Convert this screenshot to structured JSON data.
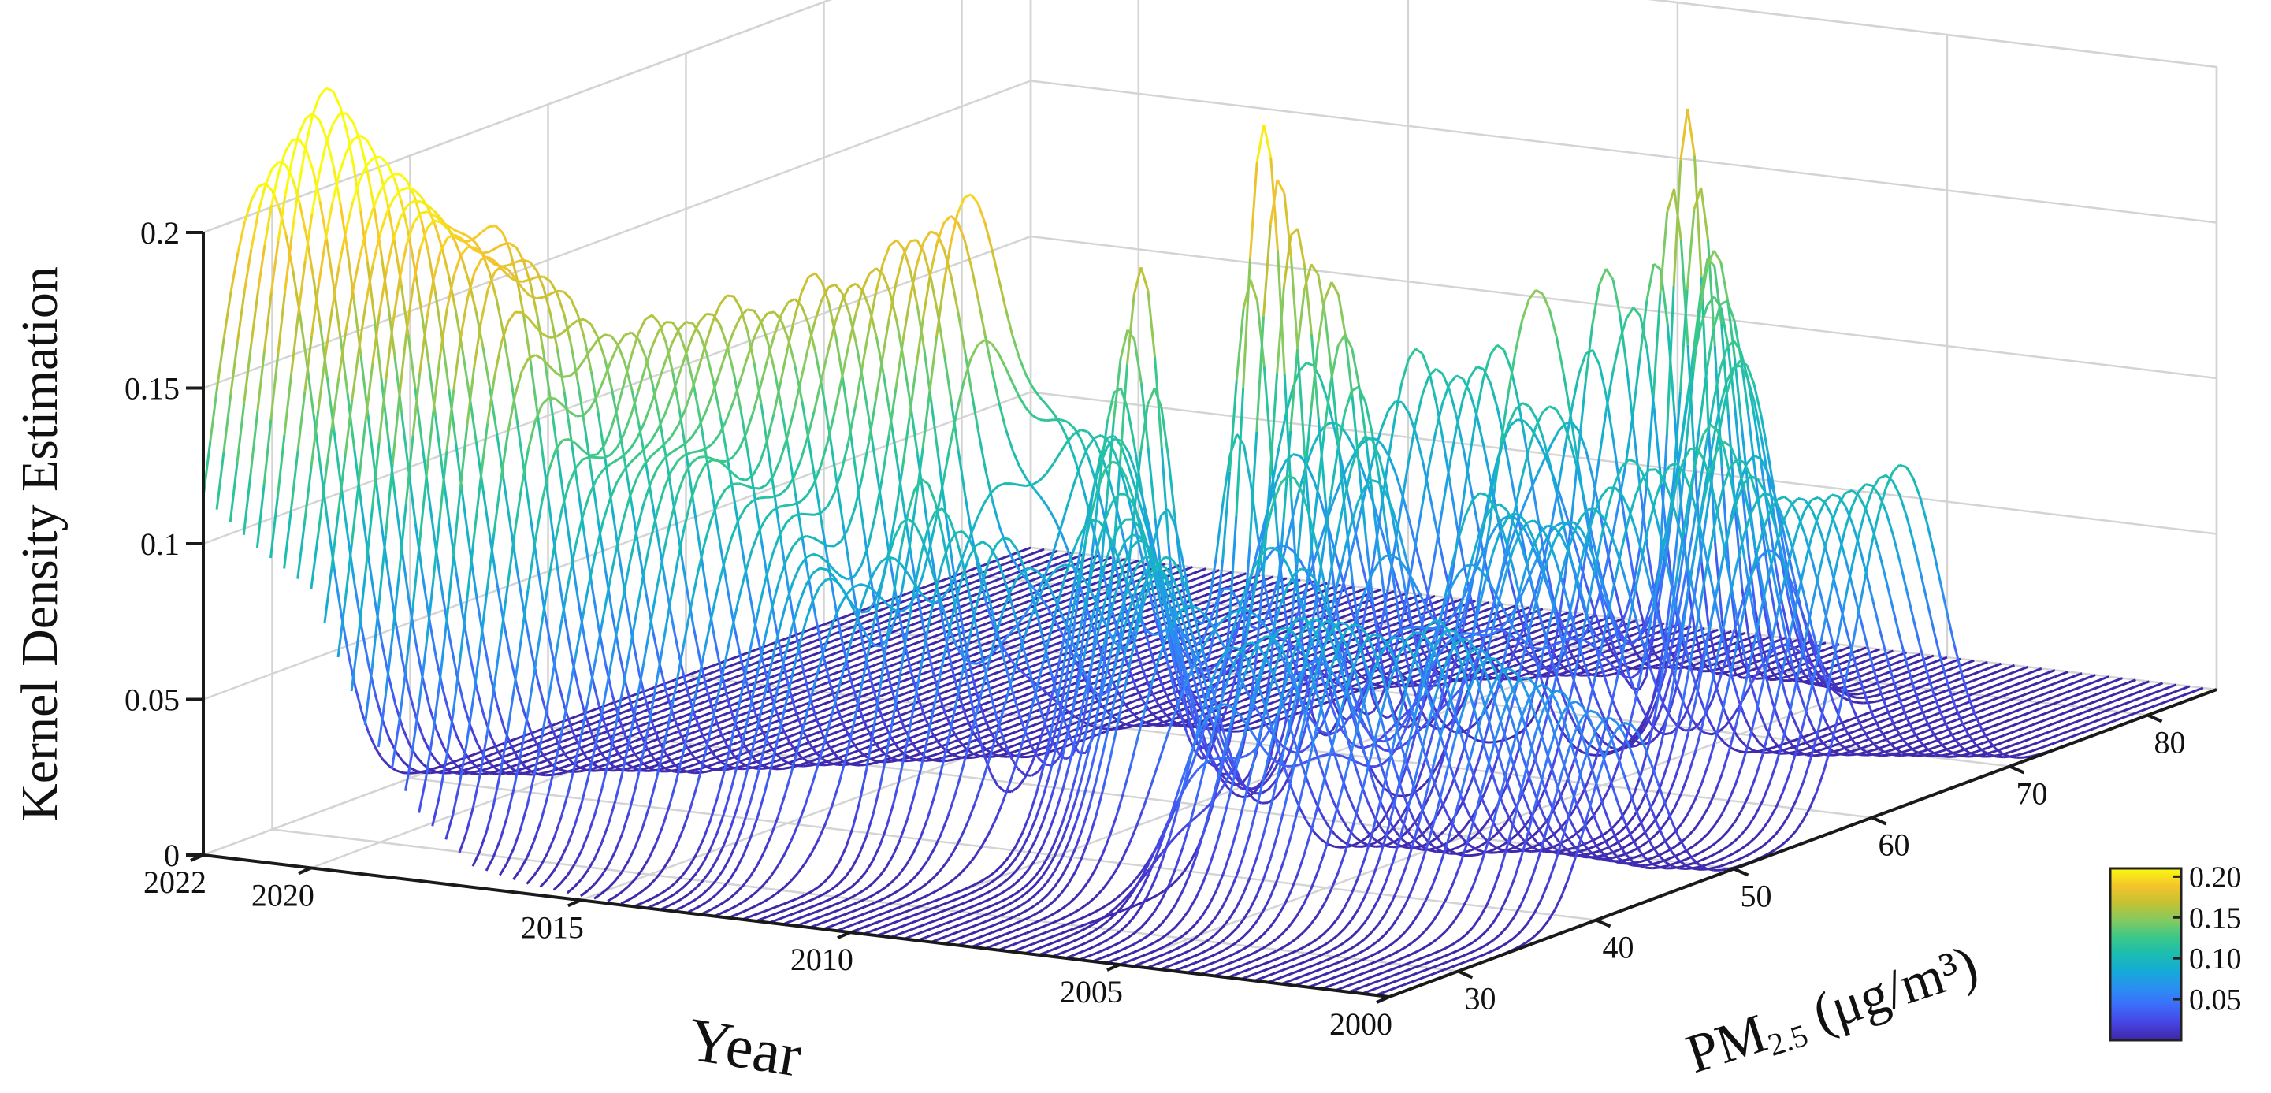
{
  "chart_data": {
    "type": "waterfall-3d",
    "title": "",
    "zlabel": "Kernel Density Estimation",
    "ylabel": "Year",
    "xlabel_main": "PM",
    "xlabel_sub": "2.5",
    "xlabel_units": "(μg/m³)",
    "x_range": [
      25,
      85
    ],
    "year_range": [
      2000,
      2022
    ],
    "z_range": [
      0,
      0.2
    ],
    "x_ticks": [
      "30",
      "40",
      "50",
      "60",
      "70",
      "80"
    ],
    "year_ticks": [
      "2022",
      "2020",
      "2015",
      "2010",
      "2005",
      "2000"
    ],
    "z_ticks": [
      "0",
      "0.05",
      "0.1",
      "0.15",
      "0.2"
    ],
    "colorbar_ticks": [
      "0.20",
      "0.15",
      "0.10",
      "0.05"
    ],
    "colorbar_range": [
      0,
      0.21
    ],
    "colormap": [
      "#3e26a8",
      "#4744e1",
      "#3d6bfa",
      "#2a8ff2",
      "#16aad6",
      "#1bbdb1",
      "#3bc888",
      "#85ca5f",
      "#c4c133",
      "#f5c42c",
      "#f9fb0e"
    ],
    "peaks_by_year": [
      {
        "year": 2000,
        "peaks": [
          [
            42,
            0.06,
            2.5
          ],
          [
            62,
            0.11,
            3.0
          ]
        ]
      },
      {
        "year": 2001,
        "peaks": [
          [
            41,
            0.07,
            2.5
          ],
          [
            61,
            0.1,
            3.0
          ]
        ]
      },
      {
        "year": 2002,
        "peaks": [
          [
            40,
            0.08,
            3.0
          ],
          [
            60,
            0.1,
            3.0
          ]
        ]
      },
      {
        "year": 2003,
        "peaks": [
          [
            40,
            0.09,
            3.0
          ],
          [
            60,
            0.12,
            2.5
          ]
        ]
      },
      {
        "year": 2004,
        "peaks": [
          [
            38,
            0.09,
            3.0
          ],
          [
            58,
            0.11,
            3.0
          ]
        ]
      },
      {
        "year": 2005,
        "peaks": [
          [
            38,
            0.09,
            3.0
          ],
          [
            56,
            0.09,
            3.0
          ],
          [
            70,
            0.12,
            2.5
          ]
        ]
      },
      {
        "year": 2006,
        "peaks": [
          [
            37,
            0.08,
            3.0
          ],
          [
            55,
            0.1,
            3.0
          ],
          [
            72,
            0.15,
            2.0
          ]
        ]
      },
      {
        "year": 2007,
        "peaks": [
          [
            45,
            0.12,
            3.0
          ],
          [
            63,
            0.15,
            3.0
          ],
          [
            74,
            0.19,
            1.2
          ]
        ]
      },
      {
        "year": 2008,
        "peaks": [
          [
            40,
            0.1,
            3.0
          ],
          [
            55,
            0.1,
            3.0
          ],
          [
            72,
            0.14,
            2.0
          ]
        ]
      },
      {
        "year": 2009,
        "peaks": [
          [
            42,
            0.1,
            3.0
          ],
          [
            56,
            0.16,
            2.0
          ],
          [
            68,
            0.12,
            2.5
          ]
        ]
      },
      {
        "year": 2010,
        "peaks": [
          [
            44,
            0.12,
            3.0
          ],
          [
            55,
            0.21,
            1.5
          ],
          [
            66,
            0.12,
            2.5
          ]
        ]
      },
      {
        "year": 2011,
        "peaks": [
          [
            40,
            0.1,
            3.0
          ],
          [
            50,
            0.17,
            1.6
          ],
          [
            62,
            0.12,
            3.0
          ]
        ]
      },
      {
        "year": 2012,
        "peaks": [
          [
            38,
            0.12,
            2.5
          ],
          [
            52,
            0.11,
            3.0
          ]
        ]
      },
      {
        "year": 2013,
        "peaks": [
          [
            35,
            0.09,
            3.0
          ],
          [
            45,
            0.19,
            3.0
          ],
          [
            52,
            0.1,
            3.0
          ]
        ]
      },
      {
        "year": 2014,
        "peaks": [
          [
            36,
            0.1,
            3.0
          ],
          [
            44,
            0.18,
            3.0
          ]
        ]
      },
      {
        "year": 2015,
        "peaks": [
          [
            34,
            0.12,
            3.0
          ],
          [
            42,
            0.17,
            3.0
          ]
        ]
      },
      {
        "year": 2016,
        "peaks": [
          [
            33,
            0.11,
            3.0
          ],
          [
            40,
            0.16,
            3.0
          ]
        ]
      },
      {
        "year": 2017,
        "peaks": [
          [
            31,
            0.12,
            2.5
          ],
          [
            38,
            0.16,
            3.0
          ]
        ]
      },
      {
        "year": 2018,
        "peaks": [
          [
            30,
            0.16,
            2.5
          ],
          [
            36,
            0.16,
            3.0
          ]
        ]
      },
      {
        "year": 2019,
        "peaks": [
          [
            29,
            0.17,
            2.5
          ],
          [
            35,
            0.18,
            3.0
          ]
        ]
      },
      {
        "year": 2020,
        "peaks": [
          [
            28,
            0.14,
            3.0
          ],
          [
            33,
            0.16,
            3.0
          ]
        ]
      },
      {
        "year": 2021,
        "peaks": [
          [
            28,
            0.15,
            3.0
          ],
          [
            32,
            0.15,
            3.0
          ]
        ]
      },
      {
        "year": 2022,
        "peaks": [
          [
            27,
            0.12,
            3.0
          ],
          [
            31,
            0.14,
            3.0
          ]
        ]
      }
    ]
  }
}
